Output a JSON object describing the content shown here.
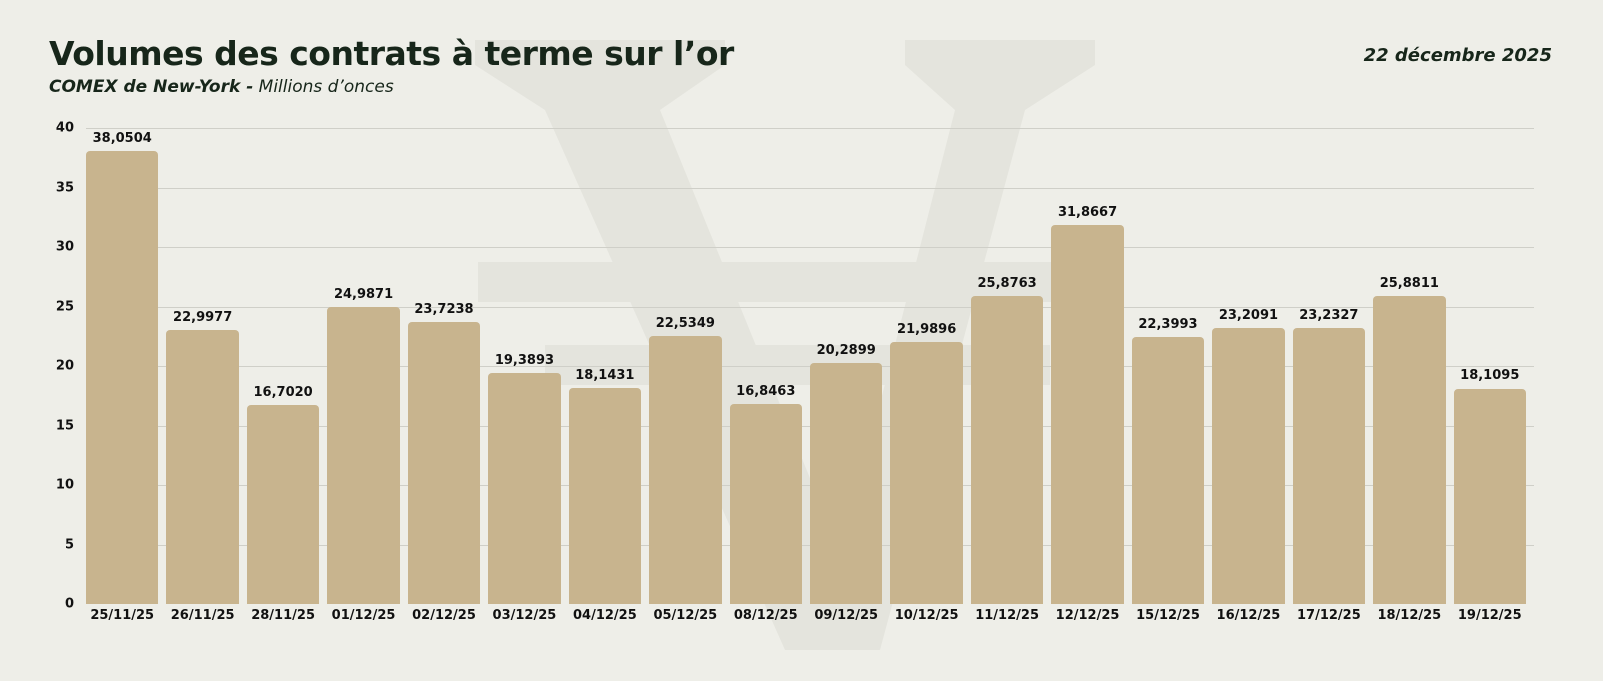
{
  "header": {
    "title": "Volumes des contrats à terme sur l’or",
    "subtitle_strong": "COMEX de New-York -",
    "subtitle_rest": " Millions d’onces",
    "date": "22 décembre 2025"
  },
  "colors": {
    "background": "#eeeee8",
    "bar": "#c8b48e",
    "title": "#17261a",
    "gridline": "#cfcfc8",
    "watermark": "#e4e4dd"
  },
  "chart_data": {
    "type": "bar",
    "title": "Volumes des contrats à terme sur l’or",
    "subtitle": "COMEX de New-York - Millions d’onces",
    "xlabel": "",
    "ylabel": "Millions d’onces",
    "ylim": [
      0,
      40
    ],
    "yticks": [
      0,
      5,
      10,
      15,
      20,
      25,
      30,
      35,
      40
    ],
    "grid": true,
    "legend": null,
    "categories": [
      "25/11/25",
      "26/11/25",
      "28/11/25",
      "01/12/25",
      "02/12/25",
      "03/12/25",
      "04/12/25",
      "05/12/25",
      "08/12/25",
      "09/12/25",
      "10/12/25",
      "11/12/25",
      "12/12/25",
      "15/12/25",
      "16/12/25",
      "17/12/25",
      "18/12/25",
      "19/12/25"
    ],
    "values": [
      38.0504,
      22.9977,
      16.702,
      24.9871,
      23.7238,
      19.3893,
      18.1431,
      22.5349,
      16.8463,
      20.2899,
      21.9896,
      25.8763,
      31.8667,
      22.3993,
      23.2091,
      23.2327,
      25.8811,
      18.1095
    ],
    "value_labels": [
      "38,0504",
      "22,9977",
      "16,7020",
      "24,9871",
      "23,7238",
      "19,3893",
      "18,1431",
      "22,5349",
      "16,8463",
      "20,2899",
      "21,9896",
      "25,8763",
      "31,8667",
      "22,3993",
      "23,2091",
      "23,2327",
      "25,8811",
      "18,1095"
    ]
  }
}
